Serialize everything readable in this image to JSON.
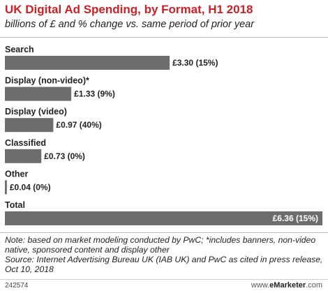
{
  "chart_data": {
    "type": "bar",
    "orientation": "horizontal",
    "title": "UK Digital Ad Spending, by Format, H1 2018",
    "subtitle": "billions of £ and % change vs. same period of prior year",
    "categories": [
      "Search",
      "Display (non-video)*",
      "Display (video)",
      "Classified",
      "Other",
      "Total"
    ],
    "values": [
      3.3,
      1.33,
      0.97,
      0.73,
      0.04,
      6.36
    ],
    "value_labels": [
      "£3.30 (15%)",
      "£1.33 (9%)",
      "£0.97 (40%)",
      "£0.73 (0%)",
      "£0.04 (0%)",
      "£6.36 (15%)"
    ],
    "percent_change": [
      15,
      9,
      40,
      0,
      0,
      15
    ],
    "unit": "billions of £",
    "xlim": [
      0,
      6.36
    ],
    "grid": false,
    "legend": "none",
    "colors": {
      "bar": "#6d6d6d",
      "title": "#cc2026"
    }
  },
  "note": "Note: based on market modeling conducted by PwC; *includes banners, non-video native, sponsored content and display other",
  "source": "Source: Internet Advertising Bureau UK (IAB UK) and PwC as cited in press release, Oct 10, 2018",
  "chart_id": "242574",
  "brand": {
    "prefix": "www.",
    "name": "eMarketer",
    "suffix": ".com"
  }
}
